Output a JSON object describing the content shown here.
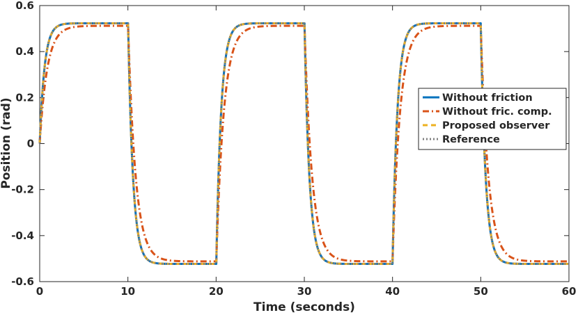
{
  "chart_data": {
    "type": "line",
    "title": "",
    "xlabel": "Time (seconds)",
    "ylabel": "Position (rad)",
    "xlim": [
      0,
      60
    ],
    "ylim": [
      -0.6,
      0.6
    ],
    "xticks": [
      "0",
      "10",
      "20",
      "30",
      "40",
      "50",
      "60"
    ],
    "yticks": [
      "-0.6",
      "-0.4",
      "-0.2",
      "0",
      "0.2",
      "0.4",
      "0.6"
    ],
    "grid": false,
    "legend_position": "right",
    "reference": {
      "amplitude": 0.523,
      "half_period": 10,
      "description_points": [
        [
          0,
          0.523
        ],
        [
          10,
          -0.523
        ],
        [
          20,
          0.523
        ],
        [
          30,
          -0.523
        ],
        [
          40,
          0.523
        ],
        [
          50,
          -0.523
        ],
        [
          60,
          -0.523
        ]
      ]
    },
    "series": [
      {
        "name": "Without friction",
        "color": "#0072BD",
        "style": "solid",
        "time_constant": 0.55,
        "steady_state": 0.523
      },
      {
        "name": "Without fric. comp.",
        "color": "#D95319",
        "style": "dashdot",
        "time_constant": 0.85,
        "steady_state": 0.512
      },
      {
        "name": "Proposed observer",
        "color": "#EDB120",
        "style": "dashed",
        "time_constant": 0.55,
        "steady_state": 0.523
      },
      {
        "name": "Reference",
        "color": "#808080",
        "style": "dotted",
        "time_constant": 0.55,
        "steady_state": 0.523
      }
    ]
  }
}
